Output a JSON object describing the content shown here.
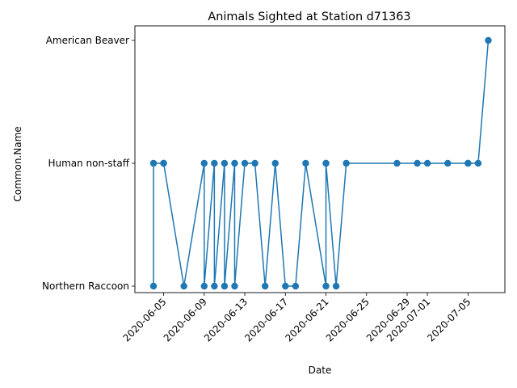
{
  "chart_data": {
    "type": "line",
    "title": "Animals Sighted at Station d71363",
    "xlabel": "Date",
    "ylabel": "Common.Name",
    "categories": [
      "Northern Raccoon",
      "Human non-staff",
      "American Beaver"
    ],
    "x_ticks": [
      "2020-06-05",
      "2020-06-09",
      "2020-06-13",
      "2020-06-17",
      "2020-06-21",
      "2020-06-25",
      "2020-06-29",
      "2020-07-01",
      "2020-07-05"
    ],
    "xlim": [
      "2020-06-03",
      "2020-07-07"
    ],
    "grid": false,
    "line_color": "#1f77b4",
    "marker": "circle",
    "series": [
      {
        "points": [
          {
            "x": "2020-06-04",
            "y": "Northern Raccoon"
          },
          {
            "x": "2020-06-04",
            "y": "Human non-staff"
          },
          {
            "x": "2020-06-05",
            "y": "Human non-staff"
          },
          {
            "x": "2020-06-05",
            "y": "Human non-staff"
          },
          {
            "x": "2020-06-07",
            "y": "Northern Raccoon"
          },
          {
            "x": "2020-06-09",
            "y": "Human non-staff"
          },
          {
            "x": "2020-06-09",
            "y": "Northern Raccoon"
          },
          {
            "x": "2020-06-10",
            "y": "Human non-staff"
          },
          {
            "x": "2020-06-10",
            "y": "Northern Raccoon"
          },
          {
            "x": "2020-06-11",
            "y": "Human non-staff"
          },
          {
            "x": "2020-06-11",
            "y": "Northern Raccoon"
          },
          {
            "x": "2020-06-12",
            "y": "Human non-staff"
          },
          {
            "x": "2020-06-12",
            "y": "Northern Raccoon"
          },
          {
            "x": "2020-06-13",
            "y": "Human non-staff"
          },
          {
            "x": "2020-06-14",
            "y": "Human non-staff"
          },
          {
            "x": "2020-06-15",
            "y": "Northern Raccoon"
          },
          {
            "x": "2020-06-16",
            "y": "Human non-staff"
          },
          {
            "x": "2020-06-17",
            "y": "Northern Raccoon"
          },
          {
            "x": "2020-06-18",
            "y": "Northern Raccoon"
          },
          {
            "x": "2020-06-19",
            "y": "Human non-staff"
          },
          {
            "x": "2020-06-21",
            "y": "Northern Raccoon"
          },
          {
            "x": "2020-06-21",
            "y": "Human non-staff"
          },
          {
            "x": "2020-06-21",
            "y": "Human non-staff"
          },
          {
            "x": "2020-06-22",
            "y": "Northern Raccoon"
          },
          {
            "x": "2020-06-23",
            "y": "Human non-staff"
          },
          {
            "x": "2020-06-28",
            "y": "Human non-staff"
          },
          {
            "x": "2020-06-30",
            "y": "Human non-staff"
          },
          {
            "x": "2020-07-01",
            "y": "Human non-staff"
          },
          {
            "x": "2020-07-03",
            "y": "Human non-staff"
          },
          {
            "x": "2020-07-05",
            "y": "Human non-staff"
          },
          {
            "x": "2020-07-05",
            "y": "Human non-staff"
          },
          {
            "x": "2020-07-06",
            "y": "Human non-staff"
          },
          {
            "x": "2020-07-07",
            "y": "American Beaver"
          }
        ]
      }
    ]
  }
}
